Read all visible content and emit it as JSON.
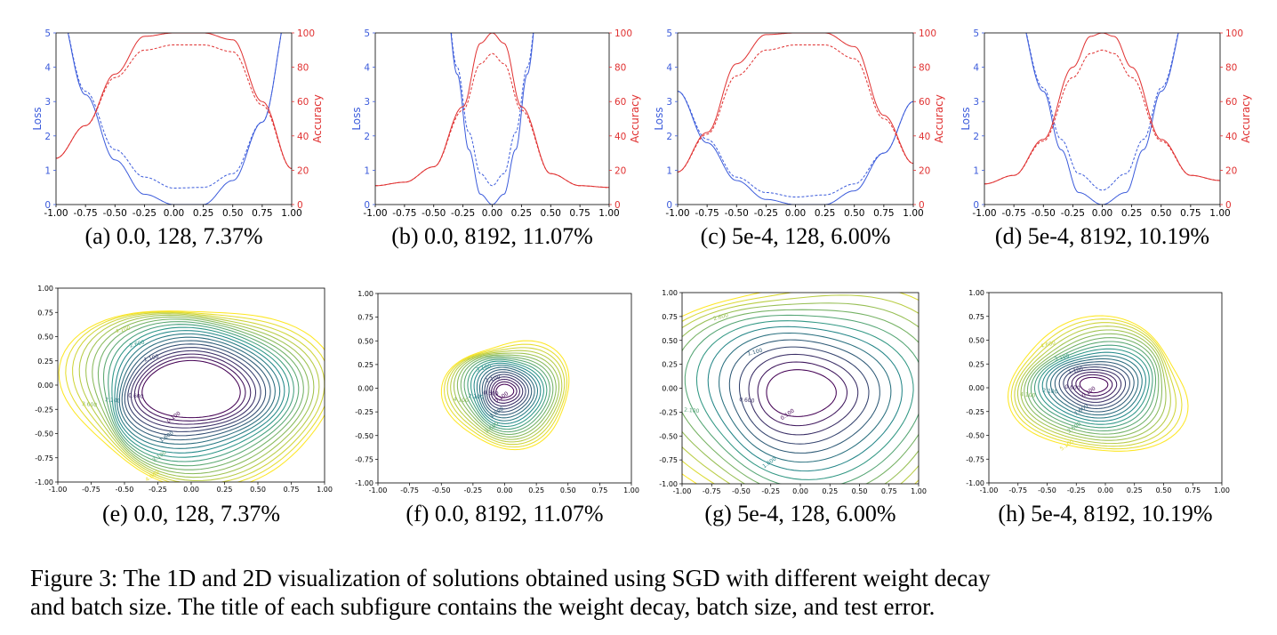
{
  "figure": {
    "caption_line1": "Figure 3: The 1D and 2D visualization of solutions obtained using SGD with different weight decay",
    "caption_line2": "and batch size. The title of each subfigure contains the weight decay, batch size, and test error.",
    "colors": {
      "loss": "#3b5bdb",
      "accuracy": "#e03131",
      "contour_low": "#440154",
      "contour_mid": "#21918c",
      "contour_high": "#fde725"
    }
  },
  "chart_data": [
    {
      "panel": "a",
      "type": "line",
      "subtitle": "(a) 0.0, 128, 7.37%",
      "xlim": [
        -1,
        1
      ],
      "ylim_left": [
        0,
        5
      ],
      "ylim_right": [
        0,
        100
      ],
      "ylabel_left": "Loss",
      "ylabel_right": "Accuracy",
      "xticks": [
        "-1.00",
        "-0.75",
        "-0.50",
        "-0.25",
        "0.00",
        "0.25",
        "0.50",
        "0.75",
        "1.00"
      ],
      "yticks_left": [
        "0",
        "1",
        "2",
        "3",
        "4",
        "5"
      ],
      "yticks_right": [
        "0",
        "20",
        "40",
        "60",
        "80",
        "100"
      ],
      "series": [
        {
          "axis": "left",
          "style": "solid",
          "x": [
            -1,
            -0.75,
            -0.5,
            -0.25,
            0,
            0.25,
            0.5,
            0.75,
            1
          ],
          "values": [
            6,
            3.2,
            1.3,
            0.3,
            0,
            0,
            0.7,
            2.4,
            6
          ]
        },
        {
          "axis": "left",
          "style": "dashed",
          "x": [
            -1,
            -0.75,
            -0.5,
            -0.25,
            0,
            0.25,
            0.5,
            0.75,
            1
          ],
          "values": [
            6,
            3.3,
            1.6,
            0.8,
            0.48,
            0.5,
            0.9,
            2.4,
            6
          ]
        },
        {
          "axis": "right",
          "style": "solid",
          "x": [
            -1,
            -0.75,
            -0.5,
            -0.25,
            0,
            0.25,
            0.5,
            0.75,
            1
          ],
          "values": [
            27,
            46,
            76,
            98,
            100,
            100,
            96,
            60,
            21
          ]
        },
        {
          "axis": "right",
          "style": "dashed",
          "x": [
            -1,
            -0.75,
            -0.5,
            -0.25,
            0,
            0.25,
            0.5,
            0.75,
            1
          ],
          "values": [
            27,
            46,
            74,
            90,
            93,
            93,
            89,
            58,
            21
          ]
        }
      ]
    },
    {
      "panel": "b",
      "type": "line",
      "subtitle": "(b) 0.0, 8192, 11.07%",
      "xlim": [
        -1,
        1
      ],
      "ylim_left": [
        0,
        5
      ],
      "ylim_right": [
        0,
        100
      ],
      "ylabel_left": "Loss",
      "ylabel_right": "Accuracy",
      "xticks": [
        "-1.00",
        "-0.75",
        "-0.50",
        "-0.25",
        "0.00",
        "0.25",
        "0.50",
        "0.75",
        "1.00"
      ],
      "yticks_left": [
        "0",
        "1",
        "2",
        "3",
        "4",
        "5"
      ],
      "yticks_right": [
        "0",
        "20",
        "40",
        "60",
        "80",
        "100"
      ],
      "series": [
        {
          "axis": "left",
          "style": "solid",
          "x": [
            -0.4,
            -0.3,
            -0.2,
            -0.1,
            0,
            0.1,
            0.2,
            0.3,
            0.4
          ],
          "values": [
            6,
            3.8,
            1.6,
            0.3,
            0,
            0.3,
            1.6,
            3.8,
            6
          ]
        },
        {
          "axis": "left",
          "style": "dashed",
          "x": [
            -0.4,
            -0.3,
            -0.2,
            -0.1,
            0,
            0.1,
            0.2,
            0.3,
            0.4
          ],
          "values": [
            6,
            4,
            2.1,
            0.9,
            0.55,
            0.9,
            2.1,
            4,
            6
          ]
        },
        {
          "axis": "right",
          "style": "solid",
          "x": [
            -1,
            -0.75,
            -0.5,
            -0.25,
            -0.1,
            0,
            0.1,
            0.25,
            0.5,
            0.75,
            1
          ],
          "values": [
            11,
            13,
            22,
            57,
            94,
            100,
            94,
            57,
            18,
            11,
            10
          ]
        },
        {
          "axis": "right",
          "style": "dashed",
          "x": [
            -1,
            -0.75,
            -0.5,
            -0.25,
            -0.1,
            0,
            0.1,
            0.25,
            0.5,
            0.75,
            1
          ],
          "values": [
            11,
            13,
            22,
            55,
            82,
            88,
            82,
            55,
            18,
            11,
            10
          ]
        }
      ]
    },
    {
      "panel": "c",
      "type": "line",
      "subtitle": "(c) 5e-4, 128, 6.00%",
      "xlim": [
        -1,
        1
      ],
      "ylim_left": [
        0,
        5
      ],
      "ylim_right": [
        0,
        100
      ],
      "ylabel_left": "Loss",
      "ylabel_right": "Accuracy",
      "xticks": [
        "-1.00",
        "-0.75",
        "-0.50",
        "-0.25",
        "0.00",
        "0.25",
        "0.50",
        "0.75",
        "1.00"
      ],
      "yticks_left": [
        "0",
        "1",
        "2",
        "3",
        "4",
        "5"
      ],
      "yticks_right": [
        "0",
        "20",
        "40",
        "60",
        "80",
        "100"
      ],
      "series": [
        {
          "axis": "left",
          "style": "solid",
          "x": [
            -1,
            -0.75,
            -0.5,
            -0.25,
            0,
            0.25,
            0.5,
            0.75,
            1
          ],
          "values": [
            3.3,
            1.8,
            0.7,
            0.15,
            0,
            0,
            0.4,
            1.5,
            3
          ]
        },
        {
          "axis": "left",
          "style": "dashed",
          "x": [
            -1,
            -0.75,
            -0.5,
            -0.25,
            0,
            0.25,
            0.5,
            0.75,
            1
          ],
          "values": [
            3.3,
            1.9,
            0.8,
            0.35,
            0.22,
            0.28,
            0.6,
            1.5,
            3
          ]
        },
        {
          "axis": "right",
          "style": "solid",
          "x": [
            -1,
            -0.75,
            -0.5,
            -0.25,
            0,
            0.25,
            0.5,
            0.75,
            1
          ],
          "values": [
            19,
            42,
            82,
            99,
            100,
            100,
            92,
            52,
            24
          ]
        },
        {
          "axis": "right",
          "style": "dashed",
          "x": [
            -1,
            -0.75,
            -0.5,
            -0.25,
            0,
            0.25,
            0.5,
            0.75,
            1
          ],
          "values": [
            19,
            41,
            75,
            90,
            93,
            93,
            85,
            50,
            24
          ]
        }
      ]
    },
    {
      "panel": "d",
      "type": "line",
      "subtitle": "(d) 5e-4, 8192, 10.19%",
      "xlim": [
        -1,
        1
      ],
      "ylim_left": [
        0,
        5
      ],
      "ylim_right": [
        0,
        100
      ],
      "ylabel_left": "Loss",
      "ylabel_right": "Accuracy",
      "xticks": [
        "-1.00",
        "-0.75",
        "-0.50",
        "-0.25",
        "0.00",
        "0.25",
        "0.50",
        "0.75",
        "1.00"
      ],
      "yticks_left": [
        "0",
        "1",
        "2",
        "3",
        "4",
        "5"
      ],
      "yticks_right": [
        "0",
        "20",
        "40",
        "60",
        "80",
        "100"
      ],
      "series": [
        {
          "axis": "left",
          "style": "solid",
          "x": [
            -0.75,
            -0.5,
            -0.35,
            -0.2,
            0,
            0.2,
            0.35,
            0.5,
            0.75
          ],
          "values": [
            6,
            3.3,
            1.6,
            0.35,
            0,
            0.35,
            1.6,
            3.3,
            6
          ]
        },
        {
          "axis": "left",
          "style": "dashed",
          "x": [
            -0.75,
            -0.5,
            -0.35,
            -0.2,
            0,
            0.2,
            0.35,
            0.5,
            0.75
          ],
          "values": [
            6,
            3.4,
            1.9,
            0.9,
            0.42,
            0.9,
            1.9,
            3.4,
            6
          ]
        },
        {
          "axis": "right",
          "style": "solid",
          "x": [
            -1,
            -0.75,
            -0.5,
            -0.25,
            -0.1,
            0,
            0.1,
            0.25,
            0.5,
            0.75,
            1
          ],
          "values": [
            12,
            17,
            38,
            80,
            98,
            100,
            98,
            80,
            38,
            17,
            14
          ]
        },
        {
          "axis": "right",
          "style": "dashed",
          "x": [
            -1,
            -0.75,
            -0.5,
            -0.25,
            -0.1,
            0,
            0.1,
            0.25,
            0.5,
            0.75,
            1
          ],
          "values": [
            12,
            17,
            37,
            74,
            88,
            90,
            88,
            74,
            37,
            17,
            14
          ]
        }
      ]
    },
    {
      "panel": "e",
      "type": "contour",
      "subtitle": "(e) 0.0, 128, 7.37%",
      "xlim": [
        -1,
        1
      ],
      "ylim": [
        -1,
        1
      ],
      "xticks": [
        "-1.00",
        "-0.75",
        "-0.50",
        "-0.25",
        "0.00",
        "0.25",
        "0.50",
        "0.75",
        "1.00"
      ],
      "yticks": [
        "-1.00",
        "-0.75",
        "-0.50",
        "-0.25",
        "0.00",
        "0.25",
        "0.50",
        "0.75",
        "1.00"
      ],
      "center": [
        0,
        -0.05
      ],
      "spread": [
        0.2,
        0.12
      ],
      "inner": [
        0.36,
        0.3
      ],
      "outer": [
        0.98,
        0.95
      ],
      "levels": 20,
      "labels": [
        "0.100",
        "0.600",
        "1.100",
        "1.600",
        "2.100",
        "2.600",
        "3.100",
        "3.600",
        "4.100",
        "4.600",
        "5.100",
        "5.600"
      ]
    },
    {
      "panel": "f",
      "type": "contour",
      "subtitle": "(f) 0.0, 8192, 11.07%",
      "xlim": [
        -1,
        1
      ],
      "ylim": [
        -1,
        1
      ],
      "xticks": [
        "-1.00",
        "-0.75",
        "-0.50",
        "-0.25",
        "0.00",
        "0.25",
        "0.50",
        "0.75",
        "1.00"
      ],
      "yticks": [
        "-1.00",
        "-0.75",
        "-0.50",
        "-0.25",
        "0.00",
        "0.25",
        "0.50",
        "0.75",
        "1.00"
      ],
      "center": [
        0,
        -0.03
      ],
      "spread": [
        0.1,
        0.1
      ],
      "inner": [
        0.07,
        0.07
      ],
      "outer": [
        0.48,
        0.58
      ],
      "levels": 20,
      "labels": [
        "0.100",
        "0.600",
        "1.100",
        "1.600",
        "2.100",
        "3.100",
        "3.600",
        "4.100",
        "4.600"
      ]
    },
    {
      "panel": "g",
      "type": "contour",
      "subtitle": "(g) 5e-4, 128, 6.00%",
      "xlim": [
        -1,
        1
      ],
      "ylim": [
        -1,
        1
      ],
      "xticks": [
        "-1.00",
        "-0.75",
        "-0.50",
        "-0.25",
        "0.00",
        "0.25",
        "0.50",
        "0.75",
        "1.00"
      ],
      "yticks": [
        "-1.00",
        "-0.75",
        "-0.50",
        "-0.25",
        "0.00",
        "0.25",
        "0.50",
        "0.75",
        "1.00"
      ],
      "center": [
        0,
        -0.05
      ],
      "spread": [
        0.25,
        0.2
      ],
      "inner": [
        0.3,
        0.24
      ],
      "outer": [
        1.4,
        1.35
      ],
      "levels": 14,
      "labels": [
        "0.100",
        "0.600",
        "1.100",
        "1.600",
        "2.100",
        "2.600",
        "3.100",
        "3.600",
        "4.100",
        "4.600",
        "5.100",
        "5.600"
      ]
    },
    {
      "panel": "h",
      "type": "contour",
      "subtitle": "(h) 5e-4, 8192, 10.19%",
      "xlim": [
        -1,
        1
      ],
      "ylim": [
        -1,
        1
      ],
      "xticks": [
        "-1.00",
        "-0.75",
        "-0.50",
        "-0.25",
        "0.00",
        "0.25",
        "0.50",
        "0.75",
        "1.00"
      ],
      "yticks": [
        "-1.00",
        "-0.75",
        "-0.50",
        "-0.25",
        "0.00",
        "0.25",
        "0.50",
        "0.75",
        "1.00"
      ],
      "center": [
        -0.1,
        0.03
      ],
      "spread": [
        0.15,
        0.1
      ],
      "inner": [
        0.12,
        0.08
      ],
      "outer": [
        0.78,
        0.68
      ],
      "levels": 20,
      "labels": [
        "0.100",
        "0.600",
        "1.100",
        "1.600",
        "2.100",
        "3.100",
        "3.600",
        "4.100",
        "4.600",
        "5.100",
        "5.600"
      ]
    }
  ]
}
